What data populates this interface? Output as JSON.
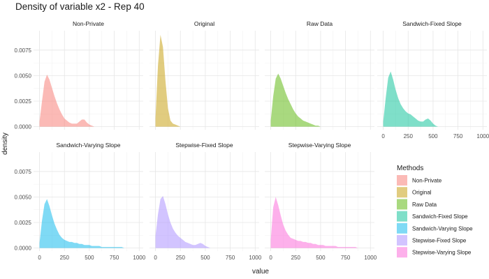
{
  "chart_data": {
    "type": "area",
    "title": "Density of variable x2 - Rep 40",
    "xlabel": "value",
    "ylabel": "density",
    "xlim": [
      -60,
      1040
    ],
    "ylim": [
      -0.0003,
      0.0094
    ],
    "x_ticks": [
      0,
      250,
      500,
      750,
      1000
    ],
    "y_ticks": [
      0,
      0.0025,
      0.005,
      0.0075
    ],
    "x_tick_labels": [
      "0",
      "250",
      "500",
      "750",
      "1000"
    ],
    "y_tick_labels": [
      "0.0000",
      "0.0025",
      "0.0050",
      "0.0075"
    ],
    "grid": true,
    "legend": {
      "title": "Methods",
      "position": "right"
    },
    "x": [
      0,
      25,
      50,
      75,
      100,
      125,
      150,
      175,
      200,
      225,
      250,
      275,
      300,
      325,
      350,
      375,
      400,
      425,
      450,
      475,
      500,
      525,
      550,
      575,
      600,
      625,
      650,
      675,
      700,
      725,
      750,
      775,
      800,
      825,
      850,
      875,
      900,
      925,
      950,
      975,
      1000
    ],
    "series": [
      {
        "name": "Non-Private",
        "color": "#F8766D",
        "values": [
          0.0005,
          0.0025,
          0.0044,
          0.0051,
          0.0046,
          0.0038,
          0.003,
          0.0023,
          0.0017,
          0.0012,
          0.0008,
          0.0006,
          0.0004,
          0.0003,
          0.0003,
          0.0003,
          0.0005,
          0.0007,
          0.0007,
          0.0004,
          0.0002,
          0.0001,
          0,
          0,
          0,
          0,
          0,
          0,
          0,
          0,
          0,
          0,
          0,
          0,
          0,
          0,
          0,
          0,
          0,
          0,
          0
        ]
      },
      {
        "name": "Original",
        "color": "#C49A00",
        "values": [
          0.0008,
          0.006,
          0.009,
          0.0078,
          0.0045,
          0.0018,
          0.0006,
          0.0003,
          0.0002,
          0.0001,
          0,
          0,
          0,
          0,
          0,
          0,
          0,
          0,
          0,
          0,
          0,
          0,
          0,
          0,
          0,
          0,
          0,
          0,
          0,
          0,
          0,
          0,
          0,
          0,
          0,
          0,
          0,
          0,
          0,
          0,
          0
        ]
      },
      {
        "name": "Raw Data",
        "color": "#53B400",
        "values": [
          0.0006,
          0.003,
          0.0047,
          0.0052,
          0.0047,
          0.004,
          0.0033,
          0.0027,
          0.0022,
          0.0017,
          0.0013,
          0.001,
          0.0008,
          0.0006,
          0.0005,
          0.0004,
          0.0003,
          0.0002,
          0.0001,
          0.0001,
          0,
          0,
          0,
          0,
          0,
          0,
          0,
          0,
          0,
          0,
          0,
          0,
          0,
          0,
          0,
          0,
          0,
          0,
          0,
          0,
          0
        ]
      },
      {
        "name": "Sandwich-Fixed Slope",
        "color": "#00C094",
        "values": [
          0.0005,
          0.0028,
          0.0048,
          0.0054,
          0.0046,
          0.0036,
          0.0028,
          0.0022,
          0.0018,
          0.0015,
          0.0013,
          0.0012,
          0.001,
          0.0008,
          0.0006,
          0.0005,
          0.0005,
          0.0007,
          0.0008,
          0.0006,
          0.0003,
          0.0001,
          0,
          0,
          0,
          0,
          0,
          0,
          0,
          0,
          0,
          0,
          0,
          0,
          0,
          0,
          0,
          0,
          0,
          0,
          0
        ]
      },
      {
        "name": "Sandwich-Varying Slope",
        "color": "#00B6EB",
        "values": [
          0.0005,
          0.0027,
          0.0043,
          0.0048,
          0.0041,
          0.0032,
          0.0024,
          0.0018,
          0.0013,
          0.001,
          0.0008,
          0.0007,
          0.0006,
          0.0006,
          0.0005,
          0.0005,
          0.0004,
          0.0004,
          0.0003,
          0.0003,
          0.0003,
          0.0002,
          0.0002,
          0.0002,
          0.0002,
          0.0001,
          0.0001,
          0.0001,
          0.0001,
          0.0001,
          0.0001,
          0.0001,
          0.0001,
          0.0001,
          0,
          0,
          0,
          0,
          0,
          0,
          0
        ]
      },
      {
        "name": "Stepwise-Fixed Slope",
        "color": "#A58AFF",
        "values": [
          0.0012,
          0.0033,
          0.0048,
          0.0051,
          0.0043,
          0.0033,
          0.0025,
          0.0019,
          0.0015,
          0.0012,
          0.001,
          0.0008,
          0.0006,
          0.0005,
          0.0004,
          0.0003,
          0.0003,
          0.0004,
          0.0005,
          0.0004,
          0.0002,
          0.0001,
          0,
          0,
          0,
          0,
          0,
          0,
          0,
          0,
          0,
          0,
          0,
          0,
          0,
          0,
          0,
          0,
          0,
          0,
          0
        ]
      },
      {
        "name": "Stepwise-Varying Slope",
        "color": "#FB61D7",
        "values": [
          0.0008,
          0.004,
          0.005,
          0.0042,
          0.0032,
          0.0023,
          0.0017,
          0.0013,
          0.001,
          0.0009,
          0.0008,
          0.0007,
          0.0007,
          0.0006,
          0.0006,
          0.0005,
          0.0005,
          0.0004,
          0.0004,
          0.0003,
          0.0003,
          0.0003,
          0.0002,
          0.0002,
          0.0002,
          0.0002,
          0.0002,
          0.0001,
          0.0001,
          0.0001,
          0.0001,
          0.0001,
          0.0001,
          0.0001,
          0.0001,
          0,
          0,
          0,
          0,
          0,
          0
        ]
      }
    ]
  }
}
